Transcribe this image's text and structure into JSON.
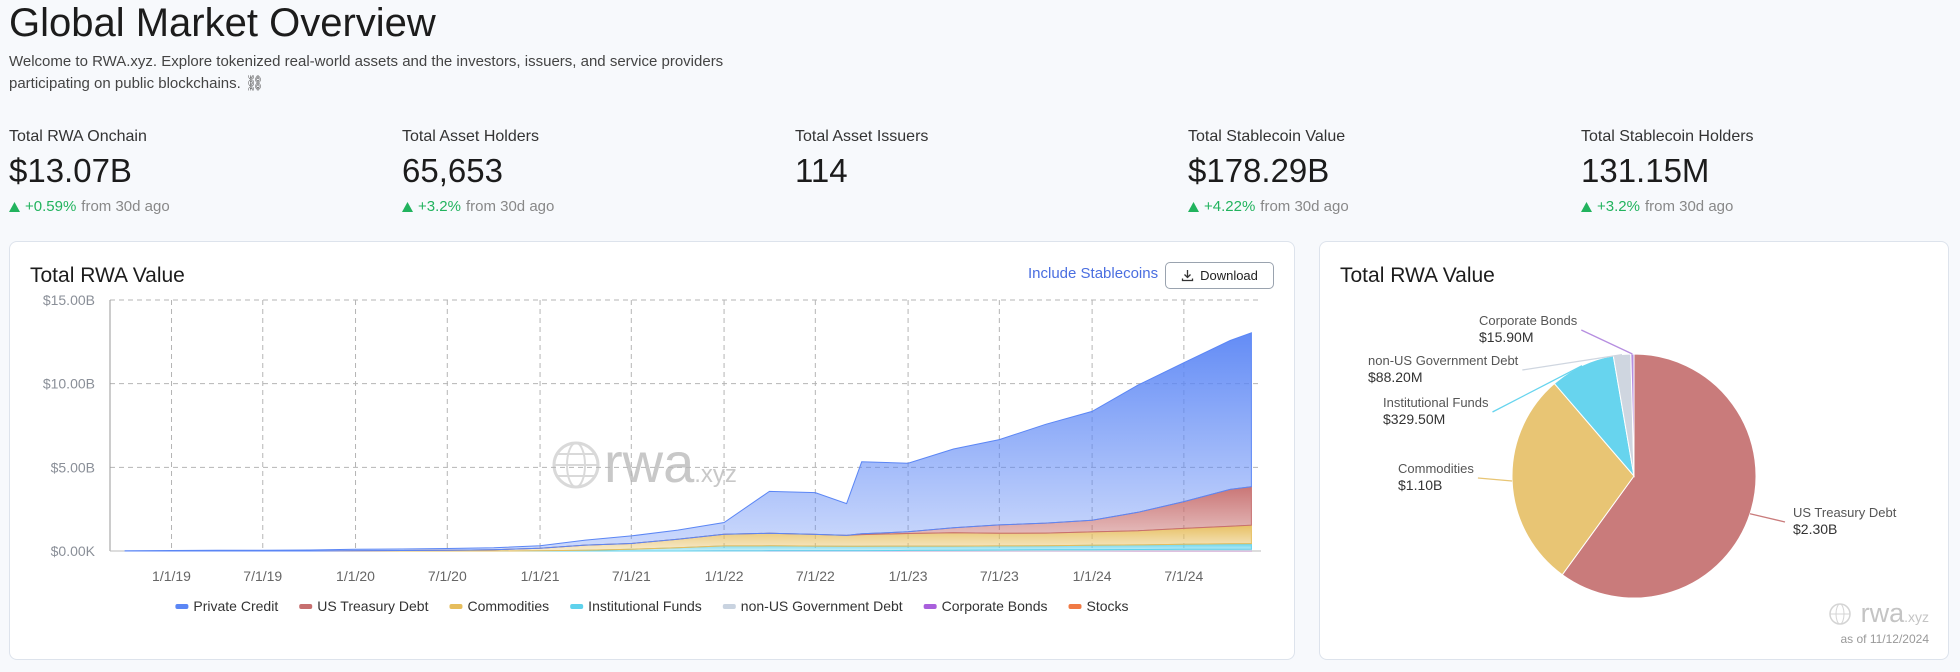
{
  "header": {
    "title": "Global Market Overview",
    "subtitle": "Welcome to RWA.xyz. Explore tokenized real-world assets and the investors, issuers, and service providers participating on public blockchains. ⛓"
  },
  "stats": [
    {
      "label": "Total RWA Onchain",
      "value": "$13.07B",
      "change": "+0.59%",
      "note": "from 30d ago"
    },
    {
      "label": "Total Asset Holders",
      "value": "65,653",
      "change": "+3.2%",
      "note": "from 30d ago"
    },
    {
      "label": "Total Asset Issuers",
      "value": "114"
    },
    {
      "label": "Total Stablecoin Value",
      "value": "$178.29B",
      "change": "+4.22%",
      "note": "from 30d ago"
    },
    {
      "label": "Total Stablecoin Holders",
      "value": "131.15M",
      "change": "+3.2%",
      "note": "from 30d ago"
    }
  ],
  "controls": {
    "toggle": "Include Stablecoins",
    "download": "Download"
  },
  "chart_data": [
    {
      "type": "stacked_area",
      "title": "Total RWA Value",
      "watermark": [
        "rwa",
        ".xyz"
      ],
      "x": [
        "10/1/18",
        "1/1/19",
        "4/1/19",
        "7/1/19",
        "10/1/19",
        "1/1/20",
        "4/1/20",
        "7/1/20",
        "10/1/20",
        "1/1/21",
        "4/1/21",
        "7/1/21",
        "10/1/21",
        "1/1/22",
        "4/1/22",
        "7/1/22",
        "9/1/22",
        "10/1/22",
        "1/1/23",
        "4/1/23",
        "7/1/23",
        "10/1/23",
        "1/1/24",
        "4/1/24",
        "7/1/24",
        "10/1/24",
        "11/12/24"
      ],
      "xlim": [
        "9/1/18",
        "12/1/24"
      ],
      "xticks": [
        "1/1/19",
        "7/1/19",
        "1/1/20",
        "7/1/20",
        "1/1/21",
        "7/1/21",
        "1/1/22",
        "7/1/22",
        "1/1/23",
        "7/1/23",
        "1/1/24",
        "7/1/24"
      ],
      "ylim": [
        0,
        15
      ],
      "yticks": [
        {
          "value": 0,
          "label": "$0.00K"
        },
        {
          "value": 5,
          "label": "$5.00B"
        },
        {
          "value": 10,
          "label": "$10.00B"
        },
        {
          "value": 15,
          "label": "$15.00B"
        }
      ],
      "grid": true,
      "series": [
        {
          "name": "Private Credit",
          "color": "#5b86f5",
          "values": [
            0.02,
            0.03,
            0.04,
            0.05,
            0.06,
            0.08,
            0.09,
            0.1,
            0.12,
            0.15,
            0.3,
            0.45,
            0.55,
            0.7,
            2.5,
            2.5,
            1.9,
            4.3,
            4.1,
            4.7,
            5.1,
            5.9,
            6.5,
            7.6,
            8.3,
            8.9,
            9.2
          ]
        },
        {
          "name": "US Treasury Debt",
          "color": "#c76f6f",
          "values": [
            0,
            0,
            0,
            0,
            0,
            0,
            0,
            0,
            0,
            0,
            0,
            0,
            0,
            0,
            0,
            0,
            0,
            0.05,
            0.1,
            0.3,
            0.5,
            0.6,
            0.7,
            1.1,
            1.6,
            2.2,
            2.3
          ]
        },
        {
          "name": "Commodities",
          "color": "#e6bd5c",
          "values": [
            0,
            0,
            0,
            0,
            0,
            0.02,
            0.03,
            0.05,
            0.08,
            0.15,
            0.3,
            0.35,
            0.5,
            0.7,
            0.75,
            0.7,
            0.65,
            0.7,
            0.75,
            0.8,
            0.75,
            0.75,
            0.8,
            0.85,
            0.95,
            1.05,
            1.1
          ]
        },
        {
          "name": "Institutional Funds",
          "color": "#5fd2ec",
          "values": [
            0,
            0,
            0,
            0,
            0,
            0,
            0,
            0,
            0,
            0.01,
            0.05,
            0.1,
            0.2,
            0.3,
            0.3,
            0.28,
            0.27,
            0.27,
            0.26,
            0.25,
            0.25,
            0.25,
            0.26,
            0.27,
            0.3,
            0.32,
            0.33
          ]
        },
        {
          "name": "non-US Government Debt",
          "color": "#c9d3e0",
          "values": [
            0,
            0,
            0,
            0,
            0,
            0,
            0,
            0,
            0,
            0,
            0,
            0,
            0,
            0,
            0,
            0,
            0,
            0,
            0.02,
            0.03,
            0.04,
            0.05,
            0.06,
            0.07,
            0.08,
            0.085,
            0.088
          ]
        },
        {
          "name": "Corporate Bonds",
          "color": "#a95fdc",
          "values": [
            0,
            0,
            0,
            0,
            0,
            0,
            0,
            0,
            0,
            0,
            0,
            0,
            0,
            0.005,
            0.01,
            0.01,
            0.01,
            0.01,
            0.01,
            0.01,
            0.012,
            0.013,
            0.014,
            0.015,
            0.015,
            0.016,
            0.016
          ]
        },
        {
          "name": "Stocks",
          "color": "#f07a45",
          "values": [
            0,
            0,
            0,
            0,
            0,
            0,
            0,
            0,
            0,
            0,
            0,
            0,
            0,
            0,
            0,
            0,
            0,
            0,
            0.005,
            0.005,
            0.005,
            0.006,
            0.006,
            0.007,
            0.008,
            0.008,
            0.008
          ]
        }
      ]
    },
    {
      "type": "pie",
      "title": "Total RWA Value",
      "watermark": [
        "rwa",
        ".xyz"
      ],
      "note": "as of 11/12/2024",
      "categories": [
        "US Treasury Debt",
        "Commodities",
        "Institutional Funds",
        "non-US Government Debt",
        "Corporate Bonds"
      ],
      "values": [
        2300,
        1100,
        329.5,
        88.2,
        15.9
      ],
      "value_labels": [
        "$2.30B",
        "$1.10B",
        "$329.50M",
        "$88.20M",
        "$15.90M"
      ],
      "colors": [
        "#c97b7b",
        "#e8c574",
        "#67d4ee",
        "#cfd6e0",
        "#b68ee0"
      ]
    }
  ]
}
